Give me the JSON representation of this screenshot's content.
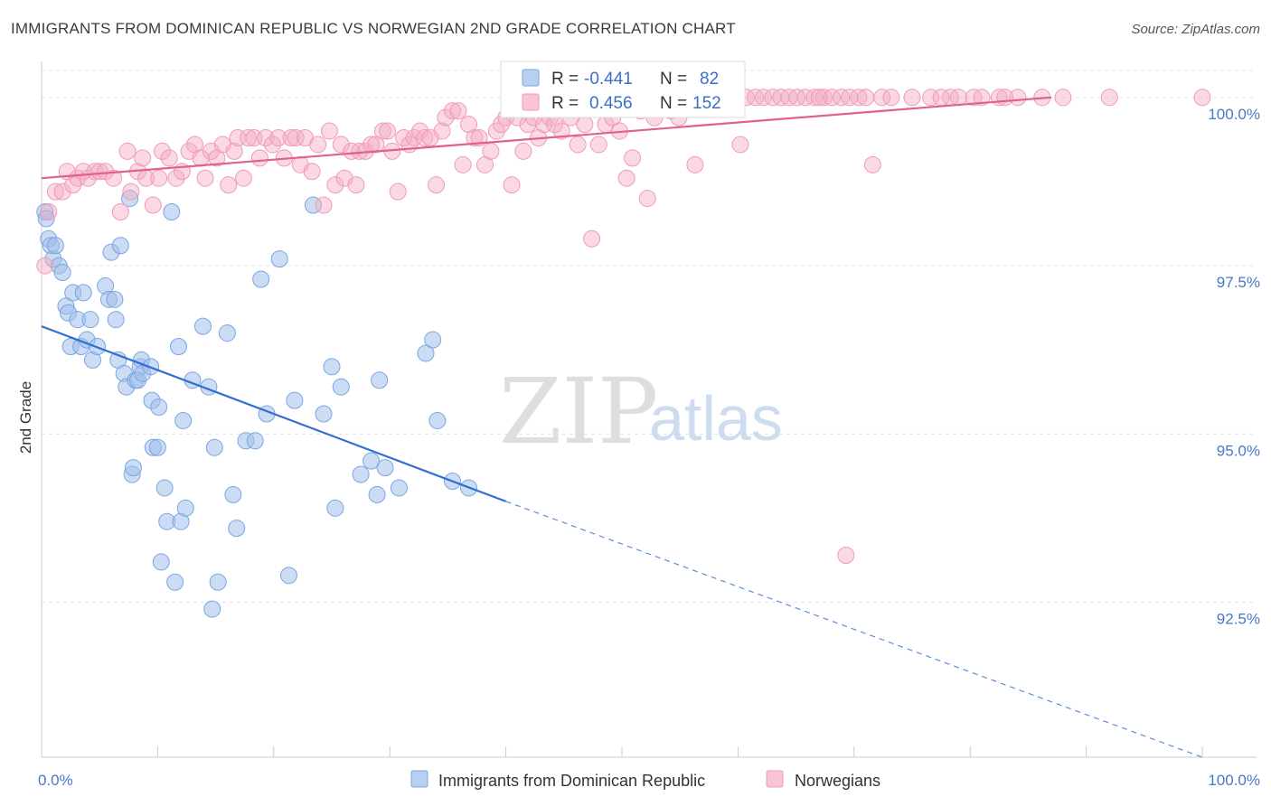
{
  "title": "IMMIGRANTS FROM DOMINICAN REPUBLIC VS NORWEGIAN 2ND GRADE CORRELATION CHART",
  "source": "Source: ZipAtlas.com",
  "watermark": {
    "zip": "ZIP",
    "atlas": "atlas"
  },
  "legend_top": {
    "rows": [
      {
        "r_label": "R =",
        "r_value": "-0.441",
        "n_label": "N =",
        "n_value": "82",
        "color": "#7aa6e0"
      },
      {
        "r_label": "R =",
        "r_value": "0.456",
        "n_label": "N =",
        "n_value": "152",
        "color": "#f09ab8"
      }
    ]
  },
  "chart_data": {
    "type": "scatter",
    "title": "IMMIGRANTS FROM DOMINICAN REPUBLIC VS NORWEGIAN 2ND GRADE CORRELATION CHART",
    "xlabel": "",
    "ylabel": "2nd Grade",
    "xlim": [
      0,
      100
    ],
    "ylim": [
      90.2,
      100.4
    ],
    "x_tick_labels": [
      "0.0%",
      "100.0%"
    ],
    "y_ticks": [
      92.5,
      95.0,
      97.5,
      100.0
    ],
    "y_tick_labels": [
      "92.5%",
      "95.0%",
      "97.5%",
      "100.0%"
    ],
    "grid": true,
    "series": [
      {
        "name": "Immigrants from Dominican Republic",
        "color": "#7aa6e0",
        "trend": {
          "x": [
            0,
            40
          ],
          "y": [
            96.6,
            94.0
          ],
          "dashed_to": [
            100,
            90.2
          ]
        },
        "points": [
          [
            0.3,
            98.3
          ],
          [
            0.6,
            97.9
          ],
          [
            0.8,
            97.8
          ],
          [
            1.0,
            97.6
          ],
          [
            1.5,
            97.5
          ],
          [
            1.8,
            97.4
          ],
          [
            2.1,
            96.9
          ],
          [
            2.3,
            96.8
          ],
          [
            2.5,
            96.3
          ],
          [
            2.7,
            97.1
          ],
          [
            3.1,
            96.7
          ],
          [
            3.4,
            96.3
          ],
          [
            3.6,
            97.1
          ],
          [
            3.9,
            96.4
          ],
          [
            4.2,
            96.7
          ],
          [
            4.4,
            96.1
          ],
          [
            4.8,
            96.3
          ],
          [
            5.5,
            97.2
          ],
          [
            5.8,
            97.0
          ],
          [
            6.0,
            97.7
          ],
          [
            6.3,
            97.0
          ],
          [
            6.4,
            96.7
          ],
          [
            6.6,
            96.1
          ],
          [
            6.8,
            97.8
          ],
          [
            7.1,
            95.9
          ],
          [
            7.3,
            95.7
          ],
          [
            7.6,
            98.5
          ],
          [
            7.8,
            94.4
          ],
          [
            7.9,
            94.5
          ],
          [
            8.1,
            95.8
          ],
          [
            8.3,
            95.8
          ],
          [
            8.5,
            96.0
          ],
          [
            8.6,
            96.1
          ],
          [
            8.7,
            95.9
          ],
          [
            9.4,
            96.0
          ],
          [
            9.5,
            95.5
          ],
          [
            9.6,
            94.8
          ],
          [
            10.0,
            94.8
          ],
          [
            10.1,
            95.4
          ],
          [
            10.3,
            93.1
          ],
          [
            10.6,
            94.2
          ],
          [
            10.8,
            93.7
          ],
          [
            11.2,
            98.3
          ],
          [
            11.5,
            92.8
          ],
          [
            11.8,
            96.3
          ],
          [
            12.0,
            93.7
          ],
          [
            12.2,
            95.2
          ],
          [
            12.4,
            93.9
          ],
          [
            13.0,
            95.8
          ],
          [
            13.9,
            96.6
          ],
          [
            14.4,
            95.7
          ],
          [
            14.7,
            92.4
          ],
          [
            14.9,
            94.8
          ],
          [
            15.2,
            92.8
          ],
          [
            16.0,
            96.5
          ],
          [
            16.5,
            94.1
          ],
          [
            16.8,
            93.6
          ],
          [
            17.6,
            94.9
          ],
          [
            18.4,
            94.9
          ],
          [
            18.9,
            97.3
          ],
          [
            19.4,
            95.3
          ],
          [
            20.5,
            97.6
          ],
          [
            21.3,
            92.9
          ],
          [
            21.8,
            95.5
          ],
          [
            23.4,
            98.4
          ],
          [
            24.3,
            95.3
          ],
          [
            25.0,
            96.0
          ],
          [
            25.3,
            93.9
          ],
          [
            25.8,
            95.7
          ],
          [
            27.5,
            94.4
          ],
          [
            28.4,
            94.6
          ],
          [
            28.9,
            94.1
          ],
          [
            29.1,
            95.8
          ],
          [
            29.6,
            94.5
          ],
          [
            30.8,
            94.2
          ],
          [
            33.1,
            96.2
          ],
          [
            33.7,
            96.4
          ],
          [
            34.1,
            95.2
          ],
          [
            35.4,
            94.3
          ],
          [
            36.8,
            94.2
          ],
          [
            0.4,
            98.2
          ],
          [
            1.2,
            97.8
          ]
        ]
      },
      {
        "name": "Norwegians",
        "color": "#f09ab8",
        "trend": {
          "x": [
            0,
            87
          ],
          "y": [
            98.8,
            100.0
          ]
        },
        "points": [
          [
            0.3,
            97.5
          ],
          [
            0.6,
            98.3
          ],
          [
            1.2,
            98.6
          ],
          [
            1.8,
            98.6
          ],
          [
            2.2,
            98.9
          ],
          [
            2.7,
            98.7
          ],
          [
            3.1,
            98.8
          ],
          [
            3.6,
            98.9
          ],
          [
            4.0,
            98.8
          ],
          [
            4.6,
            98.9
          ],
          [
            5.0,
            98.9
          ],
          [
            5.5,
            98.9
          ],
          [
            6.2,
            98.8
          ],
          [
            6.8,
            98.3
          ],
          [
            7.4,
            99.2
          ],
          [
            7.7,
            98.6
          ],
          [
            8.3,
            98.9
          ],
          [
            8.7,
            99.1
          ],
          [
            9.0,
            98.8
          ],
          [
            9.6,
            98.4
          ],
          [
            10.1,
            98.8
          ],
          [
            10.4,
            99.2
          ],
          [
            11.0,
            99.1
          ],
          [
            11.6,
            98.8
          ],
          [
            12.1,
            98.9
          ],
          [
            12.7,
            99.2
          ],
          [
            13.2,
            99.3
          ],
          [
            13.7,
            99.1
          ],
          [
            14.1,
            98.8
          ],
          [
            14.6,
            99.2
          ],
          [
            15.1,
            99.1
          ],
          [
            15.6,
            99.3
          ],
          [
            16.1,
            98.7
          ],
          [
            16.6,
            99.2
          ],
          [
            16.9,
            99.4
          ],
          [
            17.4,
            98.8
          ],
          [
            17.8,
            99.4
          ],
          [
            18.3,
            99.4
          ],
          [
            18.8,
            99.1
          ],
          [
            19.3,
            99.4
          ],
          [
            19.9,
            99.3
          ],
          [
            20.4,
            99.4
          ],
          [
            20.9,
            99.1
          ],
          [
            21.5,
            99.4
          ],
          [
            21.9,
            99.4
          ],
          [
            22.3,
            99.0
          ],
          [
            22.7,
            99.4
          ],
          [
            23.3,
            98.9
          ],
          [
            23.8,
            99.3
          ],
          [
            24.3,
            98.4
          ],
          [
            24.8,
            99.5
          ],
          [
            25.3,
            98.7
          ],
          [
            25.8,
            99.3
          ],
          [
            26.1,
            98.8
          ],
          [
            26.7,
            99.2
          ],
          [
            27.1,
            98.7
          ],
          [
            27.4,
            99.2
          ],
          [
            27.9,
            99.2
          ],
          [
            28.4,
            99.3
          ],
          [
            28.8,
            99.3
          ],
          [
            29.4,
            99.5
          ],
          [
            29.8,
            99.5
          ],
          [
            30.2,
            99.2
          ],
          [
            30.7,
            98.6
          ],
          [
            31.2,
            99.4
          ],
          [
            31.7,
            99.3
          ],
          [
            32.1,
            99.4
          ],
          [
            32.6,
            99.5
          ],
          [
            33.0,
            99.4
          ],
          [
            33.5,
            99.4
          ],
          [
            34.0,
            98.7
          ],
          [
            34.5,
            99.5
          ],
          [
            34.8,
            99.7
          ],
          [
            35.4,
            99.8
          ],
          [
            35.9,
            99.8
          ],
          [
            36.3,
            99.0
          ],
          [
            36.8,
            99.6
          ],
          [
            37.3,
            99.4
          ],
          [
            37.7,
            99.4
          ],
          [
            38.2,
            99.0
          ],
          [
            38.7,
            99.2
          ],
          [
            39.2,
            99.5
          ],
          [
            39.6,
            99.6
          ],
          [
            40.0,
            99.7
          ],
          [
            40.5,
            98.7
          ],
          [
            41.0,
            99.7
          ],
          [
            41.5,
            99.2
          ],
          [
            41.9,
            99.6
          ],
          [
            42.4,
            99.7
          ],
          [
            42.8,
            99.4
          ],
          [
            43.3,
            99.6
          ],
          [
            43.8,
            99.7
          ],
          [
            44.2,
            99.6
          ],
          [
            44.8,
            99.5
          ],
          [
            45.6,
            99.7
          ],
          [
            46.2,
            99.3
          ],
          [
            46.8,
            99.6
          ],
          [
            47.4,
            97.9
          ],
          [
            48.0,
            99.3
          ],
          [
            48.6,
            99.6
          ],
          [
            49.2,
            99.7
          ],
          [
            49.8,
            99.5
          ],
          [
            50.4,
            98.8
          ],
          [
            50.9,
            99.1
          ],
          [
            51.6,
            99.8
          ],
          [
            52.2,
            98.5
          ],
          [
            52.8,
            99.7
          ],
          [
            53.5,
            100.0
          ],
          [
            54.2,
            99.8
          ],
          [
            54.9,
            99.7
          ],
          [
            55.6,
            100.0
          ],
          [
            56.3,
            99.0
          ],
          [
            57.0,
            100.0
          ],
          [
            57.7,
            100.0
          ],
          [
            58.4,
            100.0
          ],
          [
            59.0,
            100.0
          ],
          [
            59.7,
            100.0
          ],
          [
            60.2,
            99.3
          ],
          [
            60.7,
            100.0
          ],
          [
            61.5,
            100.0
          ],
          [
            62.2,
            100.0
          ],
          [
            63.0,
            100.0
          ],
          [
            63.7,
            100.0
          ],
          [
            64.4,
            100.0
          ],
          [
            65.1,
            100.0
          ],
          [
            65.8,
            100.0
          ],
          [
            66.6,
            100.0
          ],
          [
            67.4,
            100.0
          ],
          [
            68.1,
            100.0
          ],
          [
            68.9,
            100.0
          ],
          [
            69.3,
            93.2
          ],
          [
            69.6,
            100.0
          ],
          [
            70.4,
            100.0
          ],
          [
            71.0,
            100.0
          ],
          [
            71.6,
            99.0
          ],
          [
            72.4,
            100.0
          ],
          [
            73.2,
            100.0
          ],
          [
            76.6,
            100.0
          ],
          [
            78.3,
            100.0
          ],
          [
            80.3,
            100.0
          ],
          [
            81.0,
            100.0
          ],
          [
            82.5,
            100.0
          ],
          [
            83.0,
            100.0
          ],
          [
            84.1,
            100.0
          ],
          [
            86.2,
            100.0
          ],
          [
            88.0,
            100.0
          ],
          [
            92.0,
            100.0
          ],
          [
            100.0,
            100.0
          ],
          [
            75.0,
            100.0
          ],
          [
            67.0,
            100.0
          ],
          [
            77.5,
            100.0
          ],
          [
            79.0,
            100.0
          ]
        ]
      }
    ]
  },
  "legend_bottom": [
    {
      "label": "Immigrants from Dominican Republic",
      "color": "#7aa6e0"
    },
    {
      "label": "Norwegians",
      "color": "#f09ab8"
    }
  ]
}
